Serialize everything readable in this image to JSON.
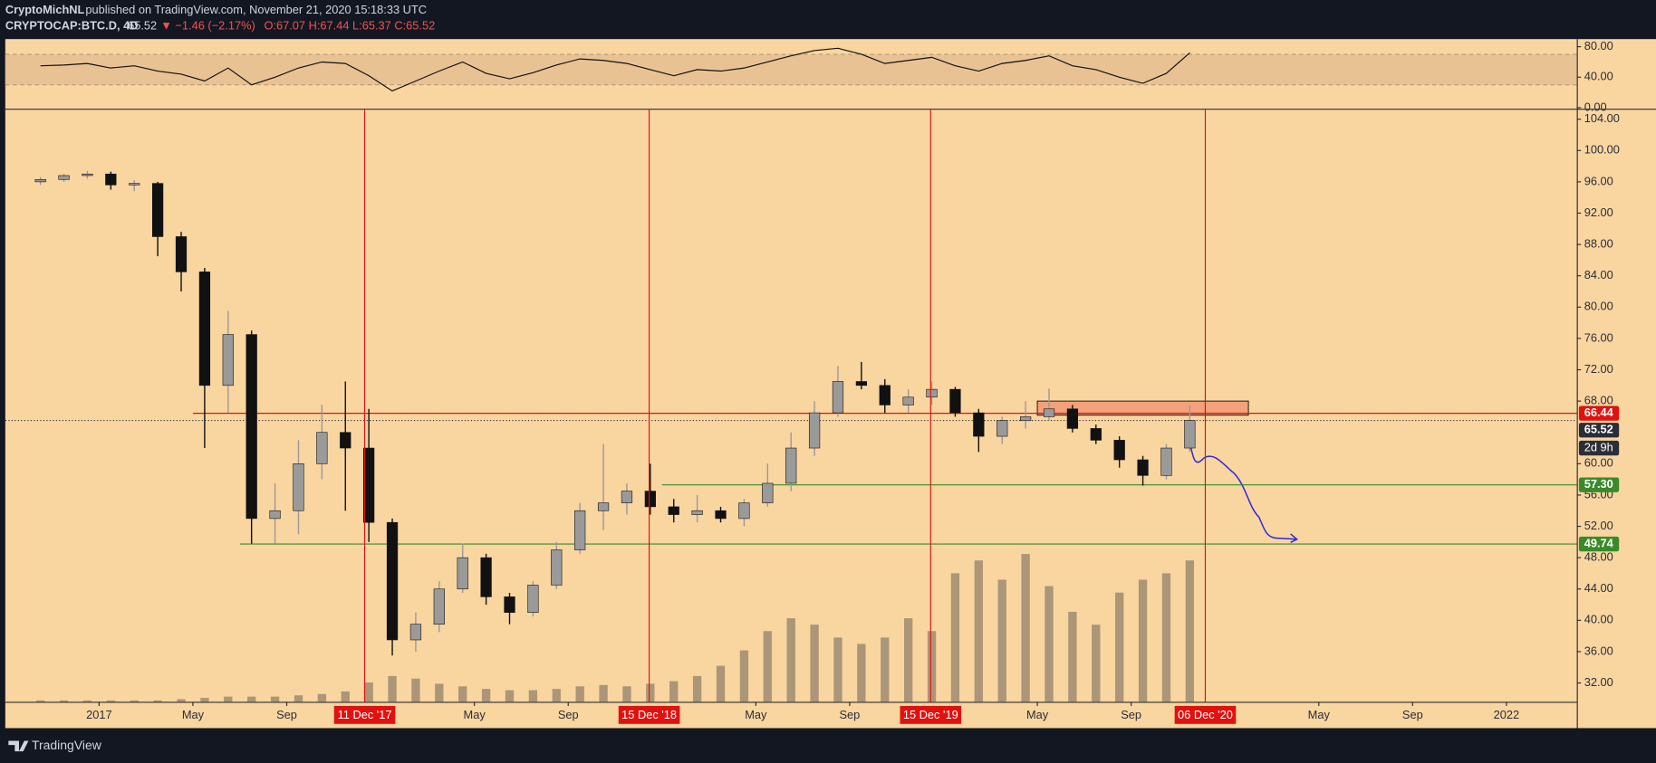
{
  "header": {
    "author": "CryptoMichNL",
    "published": "published on TradingView.com, November 21, 2020 15:18:33 UTC",
    "symbol": "CRYPTOCAP:BTC.D, 4D",
    "quote": "65.52",
    "change": "▼ −1.46 (−2.17%)",
    "ohlc": "O:67.07 H:67.44 L:65.37 C:65.52"
  },
  "footer": {
    "brand": "TradingView"
  },
  "chart_data": {
    "type": "candlestick",
    "x": [
      "2016-10",
      "2016-11",
      "2016-12",
      "2017-01",
      "2017-02",
      "2017-03",
      "2017-04",
      "2017-05",
      "2017-06",
      "2017-07",
      "2017-08",
      "2017-09",
      "2017-10",
      "2017-11",
      "2017-12",
      "2018-01",
      "2018-02",
      "2018-03",
      "2018-04",
      "2018-05",
      "2018-06",
      "2018-07",
      "2018-08",
      "2018-09",
      "2018-10",
      "2018-11",
      "2018-12",
      "2019-01",
      "2019-02",
      "2019-03",
      "2019-04",
      "2019-05",
      "2019-06",
      "2019-07",
      "2019-08",
      "2019-09",
      "2019-10",
      "2019-11",
      "2019-12",
      "2020-01",
      "2020-02",
      "2020-03",
      "2020-04",
      "2020-05",
      "2020-06",
      "2020-07",
      "2020-08",
      "2020-09",
      "2020-10",
      "2020-11"
    ],
    "open": [
      96.0,
      96.3,
      96.8,
      97.0,
      95.6,
      95.8,
      89.0,
      84.5,
      70.0,
      76.5,
      53.0,
      54.0,
      60.0,
      64.0,
      62.0,
      52.5,
      37.5,
      39.5,
      44.0,
      48.0,
      43.0,
      41.0,
      44.5,
      49.0,
      54.0,
      55.0,
      56.5,
      54.5,
      53.5,
      54.0,
      53.0,
      55.0,
      57.5,
      62.0,
      66.5,
      70.5,
      70.0,
      67.5,
      68.5,
      69.5,
      66.5,
      63.5,
      65.5,
      66.0,
      67.0,
      64.5,
      63.0,
      60.5,
      58.5,
      62.0
    ],
    "high": [
      96.6,
      97.0,
      97.4,
      97.3,
      96.2,
      96.0,
      89.6,
      85.0,
      79.5,
      77.0,
      57.5,
      63.0,
      67.5,
      70.5,
      67.0,
      53.0,
      41.0,
      45.0,
      49.8,
      48.5,
      43.5,
      45.0,
      50.0,
      55.0,
      62.5,
      57.5,
      60.0,
      55.5,
      56.0,
      54.5,
      55.5,
      60.0,
      64.0,
      68.0,
      72.5,
      73.0,
      70.8,
      69.5,
      70.5,
      69.8,
      67.0,
      66.0,
      68.0,
      69.6,
      67.5,
      65.0,
      63.5,
      61.0,
      62.5,
      67.44
    ],
    "low": [
      95.6,
      96.0,
      96.4,
      95.0,
      94.8,
      86.5,
      82.0,
      62.0,
      66.5,
      49.8,
      49.8,
      51.0,
      58.0,
      54.0,
      50.0,
      35.5,
      36.0,
      38.5,
      43.5,
      42.0,
      39.5,
      40.5,
      44.0,
      48.5,
      51.5,
      53.5,
      53.5,
      52.5,
      52.5,
      52.5,
      52.0,
      54.5,
      56.5,
      61.0,
      66.0,
      69.5,
      66.5,
      66.5,
      67.5,
      66.0,
      61.5,
      62.5,
      64.5,
      65.5,
      64.0,
      62.5,
      59.5,
      57.2,
      58.0,
      61.5
    ],
    "close": [
      96.3,
      96.8,
      97.0,
      95.6,
      95.8,
      89.0,
      84.5,
      70.0,
      76.5,
      53.0,
      54.0,
      60.0,
      64.0,
      62.0,
      52.5,
      37.5,
      39.5,
      44.0,
      48.0,
      43.0,
      41.0,
      44.5,
      49.0,
      54.0,
      55.0,
      56.5,
      54.5,
      53.5,
      54.0,
      53.0,
      55.0,
      57.5,
      62.0,
      66.5,
      70.5,
      70.0,
      67.5,
      68.5,
      69.5,
      66.5,
      63.5,
      65.5,
      66.0,
      67.0,
      64.5,
      63.0,
      60.5,
      58.5,
      62.0,
      65.52
    ],
    "volume": [
      1,
      1,
      1,
      1,
      1,
      1,
      2,
      3,
      4,
      4,
      4,
      5,
      6,
      8,
      15,
      20,
      18,
      14,
      12,
      10,
      9,
      9,
      10,
      12,
      13,
      12,
      14,
      16,
      20,
      28,
      40,
      55,
      65,
      60,
      50,
      45,
      50,
      65,
      55,
      100,
      110,
      95,
      115,
      90,
      70,
      60,
      85,
      95,
      100,
      110
    ],
    "rsi": [
      55,
      56,
      58,
      52,
      55,
      48,
      44,
      35,
      52,
      30,
      40,
      52,
      60,
      58,
      42,
      22,
      35,
      48,
      60,
      45,
      38,
      46,
      56,
      64,
      62,
      58,
      50,
      42,
      50,
      48,
      52,
      60,
      68,
      75,
      78,
      70,
      58,
      62,
      66,
      55,
      48,
      58,
      62,
      68,
      55,
      50,
      40,
      32,
      45,
      72
    ],
    "up_color": "#9a9a9a",
    "down_color": "#111111",
    "volume_color": "#6b6357",
    "rsi_color": "#111111",
    "xlim": [
      "2016-09",
      "2022-04"
    ],
    "xticks": [
      {
        "value": "2017-01",
        "label": "2017"
      },
      {
        "value": "2017-05",
        "label": "May"
      },
      {
        "value": "2017-09",
        "label": "Sep"
      },
      {
        "value": "2018-05",
        "label": "May"
      },
      {
        "value": "2018-09",
        "label": "Sep"
      },
      {
        "value": "2019-05",
        "label": "May"
      },
      {
        "value": "2019-09",
        "label": "Sep"
      },
      {
        "value": "2020-05",
        "label": "May"
      },
      {
        "value": "2020-09",
        "label": "Sep"
      },
      {
        "value": "2021-05",
        "label": "May"
      },
      {
        "value": "2021-09",
        "label": "Sep"
      },
      {
        "value": "2022-01",
        "label": "2022"
      }
    ],
    "ylim": [
      29.6,
      105.2
    ],
    "yticks": [
      {
        "value": 104,
        "label": "104.00"
      },
      {
        "value": 100,
        "label": "100.00"
      },
      {
        "value": 96,
        "label": "96.00"
      },
      {
        "value": 92,
        "label": "92.00"
      },
      {
        "value": 88,
        "label": "88.00"
      },
      {
        "value": 84,
        "label": "84.00"
      },
      {
        "value": 80,
        "label": "80.00"
      },
      {
        "value": 76,
        "label": "76.00"
      },
      {
        "value": 72,
        "label": "72.00"
      },
      {
        "value": 68,
        "label": "68.00"
      },
      {
        "value": 60,
        "label": "60.00"
      },
      {
        "value": 56,
        "label": "56.00"
      },
      {
        "value": 52,
        "label": "52.00"
      },
      {
        "value": 48,
        "label": "48.00"
      },
      {
        "value": 44,
        "label": "44.00"
      },
      {
        "value": 40,
        "label": "40.00"
      },
      {
        "value": 36,
        "label": "36.00"
      },
      {
        "value": 32,
        "label": "32.00"
      }
    ],
    "rsi_ylim": [
      0,
      90
    ],
    "rsi_yticks": [
      {
        "value": 80,
        "label": "80.00"
      },
      {
        "value": 40,
        "label": "40.00"
      },
      {
        "value": 0,
        "label": "0.00"
      }
    ],
    "rsi_band": [
      30,
      70
    ],
    "price_lines": [
      {
        "value": 66.44,
        "label": "66.44",
        "color": "#e0120f",
        "from": "2017-05"
      },
      {
        "value": 65.52,
        "label": "65.52",
        "color": "#2a2e39",
        "dotted": true
      },
      {
        "value": 57.3,
        "label": "57.30",
        "color": "#3a8a2a",
        "from": "2019-01"
      },
      {
        "value": 49.74,
        "label": "49.74",
        "color": "#3a8a2a",
        "from": "2017-07"
      }
    ],
    "countdown": "2d 9h",
    "zone": {
      "from": "2020-05",
      "to": "2021-02",
      "top": 68.0,
      "bottom": 66.2,
      "color": "#f4a07a"
    },
    "events": [
      {
        "date": "2017-12-11",
        "label": "11 Dec '17"
      },
      {
        "date": "2018-12-15",
        "label": "15 Dec '18"
      },
      {
        "date": "2019-12-15",
        "label": "15 Dec '19"
      },
      {
        "date": "2020-12-06",
        "label": "06 Dec '20"
      }
    ],
    "event_color": "#e0120f"
  }
}
